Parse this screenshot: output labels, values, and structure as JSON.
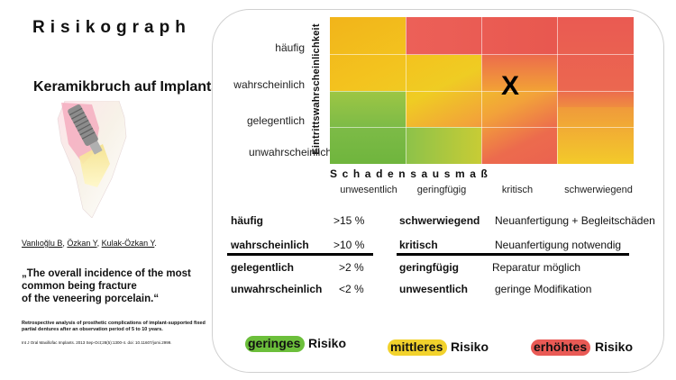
{
  "title": "Risikograph",
  "subtitle": "Keramikbruch auf Implantat",
  "matrix": {
    "vertical_axis": "Eintrittswahrscheinlichkeit",
    "horizontal_axis": "Schadensausmaß",
    "rows": [
      "häufig",
      "wahrscheinlich",
      "gelegentlich",
      "unwahrscheinlich"
    ],
    "columns": [
      "unwesentlich",
      "geringfügig",
      "kritisch",
      "schwerwiegend"
    ],
    "marker": "X"
  },
  "legend_probability": [
    {
      "term": "häufig",
      "value": ">15 %"
    },
    {
      "term": "wahrscheinlich",
      "value": ">10 %"
    },
    {
      "term": "gelegentlich",
      "value": ">2 %"
    },
    {
      "term": "unwahrscheinlich",
      "value": "<2 %"
    }
  ],
  "legend_severity": [
    {
      "term": "schwerwiegend",
      "value": "Neuanfertigung + Begleitschäden"
    },
    {
      "term": "kritisch",
      "value": "Neuanfertigung notwendig"
    },
    {
      "term": "geringfügig",
      "value": "Reparatur möglich"
    },
    {
      "term": "unwesentlich",
      "value": "geringe Modifikation"
    }
  ],
  "reference": {
    "authors": [
      "Vanlıoğlu B",
      "Özkan Y",
      "Kulak-Özkan Y"
    ],
    "quote_lines": [
      "„The overall incidence of the most",
      "common being fracture",
      "of the veneering porcelain.“"
    ],
    "study_title": "Retrospective analysis of prosthetic complications of implant-supported fixed partial dentures after an observation period of 5 to 10 years.",
    "citation": "Int J Oral Maxillofac Implants. 2013 Sep-Oct;28(5):1300-4. doi: 10.11607/jomi.2999."
  },
  "risk_levels": [
    {
      "level": "geringes",
      "suffix": "Risiko",
      "color": "#6cbf3b"
    },
    {
      "level": "mittleres",
      "suffix": "Risiko",
      "color": "#f2d22c"
    },
    {
      "level": "erhöhtes",
      "suffix": "Risiko",
      "color": "#e95a55"
    }
  ]
}
